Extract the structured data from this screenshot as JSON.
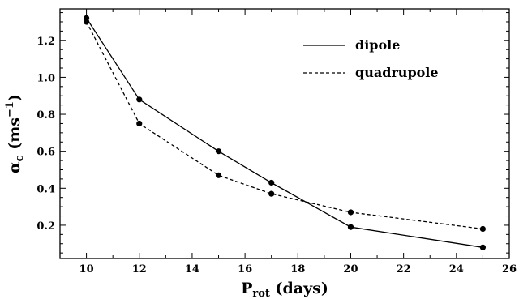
{
  "chart_data": {
    "type": "line",
    "xlabel": {
      "main": "P",
      "sub": "rot",
      "rest": " (days)"
    },
    "ylabel": {
      "main": "α",
      "sub": "c",
      "rest": " (ms",
      "sup": "−1",
      "close": ")"
    },
    "xlim": [
      9,
      26
    ],
    "ylim": [
      0.02,
      1.37
    ],
    "xticks": [
      10,
      12,
      14,
      16,
      18,
      20,
      22,
      24,
      26
    ],
    "yticks": [
      0.2,
      0.4,
      0.6,
      0.8,
      1.0,
      1.2
    ],
    "ytick_labels": [
      "0.2",
      "0.4",
      "0.6",
      "0.8",
      "1.0",
      "1.2"
    ],
    "legend_position": "top-right",
    "grid": false,
    "series": [
      {
        "name": "dipole",
        "style": "solid",
        "color": "#000000",
        "x": [
          10,
          12,
          15,
          17,
          20,
          25
        ],
        "y": [
          1.32,
          0.88,
          0.6,
          0.43,
          0.19,
          0.08
        ]
      },
      {
        "name": "quadrupole",
        "style": "dashed",
        "color": "#000000",
        "x": [
          10,
          12,
          15,
          17,
          20,
          25
        ],
        "y": [
          1.3,
          0.75,
          0.47,
          0.37,
          0.27,
          0.18
        ]
      }
    ]
  }
}
